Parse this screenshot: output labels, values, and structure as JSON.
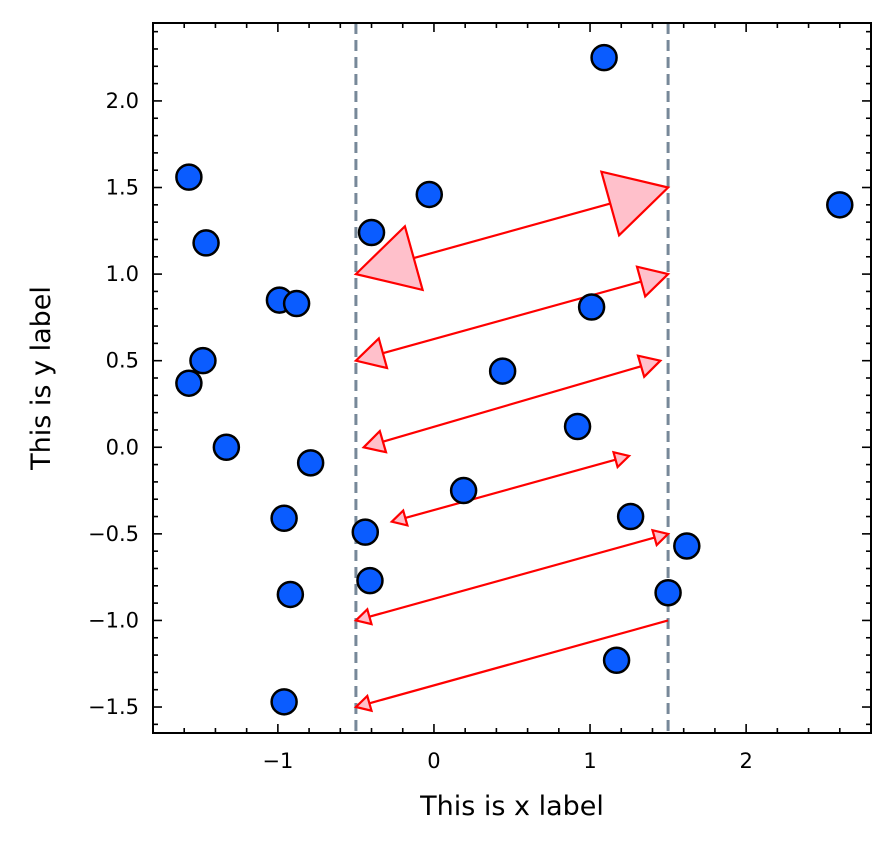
{
  "chart_data": {
    "type": "scatter",
    "title": "",
    "xlabel": "This is x label",
    "ylabel": "This is y label",
    "xlim": [
      -1.8,
      2.8
    ],
    "ylim": [
      -1.65,
      2.45
    ],
    "xticks": [
      -1,
      0,
      1,
      2
    ],
    "xtick_labels": [
      "−1",
      "0",
      "1",
      "2"
    ],
    "yticks": [
      -1.5,
      -1.0,
      -0.5,
      0.0,
      0.5,
      1.0,
      1.5,
      2.0
    ],
    "ytick_labels": [
      "−1.5",
      "−1.0",
      "−0.5",
      "0.0",
      "0.5",
      "1.0",
      "1.5",
      "2.0"
    ],
    "grid": false,
    "tick_direction": "in",
    "colors": {
      "marker_fill": "#0a5cff",
      "marker_edge": "#000000",
      "arrow": "#ff0000",
      "arrow_head_fill": "#ffc0cb",
      "vline": "#778899"
    },
    "vlines": [
      -0.5,
      1.5
    ],
    "points": [
      {
        "x": 1.09,
        "y": 2.25
      },
      {
        "x": -1.57,
        "y": 1.56
      },
      {
        "x": -0.03,
        "y": 1.46
      },
      {
        "x": 2.6,
        "y": 1.4
      },
      {
        "x": -0.4,
        "y": 1.24
      },
      {
        "x": -1.46,
        "y": 1.18
      },
      {
        "x": -0.99,
        "y": 0.85
      },
      {
        "x": -0.88,
        "y": 0.83
      },
      {
        "x": 1.01,
        "y": 0.81
      },
      {
        "x": -1.48,
        "y": 0.5
      },
      {
        "x": 0.44,
        "y": 0.44
      },
      {
        "x": -1.57,
        "y": 0.37
      },
      {
        "x": 0.92,
        "y": 0.12
      },
      {
        "x": -1.33,
        "y": 0.0
      },
      {
        "x": -0.79,
        "y": -0.09
      },
      {
        "x": 0.19,
        "y": -0.25
      },
      {
        "x": 1.26,
        "y": -0.4
      },
      {
        "x": -0.96,
        "y": -0.41
      },
      {
        "x": -0.44,
        "y": -0.49
      },
      {
        "x": 1.62,
        "y": -0.57
      },
      {
        "x": -0.41,
        "y": -0.77
      },
      {
        "x": 1.5,
        "y": -0.84
      },
      {
        "x": -0.92,
        "y": -0.85
      },
      {
        "x": 1.17,
        "y": -1.23
      },
      {
        "x": -0.96,
        "y": -1.47
      }
    ],
    "arrows": [
      {
        "x1": 1.5,
        "y1": 1.5,
        "x2": -0.5,
        "y2": 1.0,
        "heads": "both",
        "head_size": 3
      },
      {
        "x1": 1.5,
        "y1": 1.0,
        "x2": -0.5,
        "y2": 0.5,
        "heads": "both",
        "head_size": 1.4
      },
      {
        "x1": 1.45,
        "y1": 0.5,
        "x2": -0.45,
        "y2": 0.0,
        "heads": "both",
        "head_size": 1
      },
      {
        "x1": 1.25,
        "y1": -0.05,
        "x2": -0.27,
        "y2": -0.43,
        "heads": "both",
        "head_size": 0.7
      },
      {
        "x1": 1.5,
        "y1": -0.5,
        "x2": -0.5,
        "y2": -1.0,
        "heads": "both",
        "head_size": 0.7
      },
      {
        "x1": 1.5,
        "y1": -1.0,
        "x2": -0.5,
        "y2": -1.5,
        "heads": "end",
        "head_size": 0.7
      }
    ]
  }
}
